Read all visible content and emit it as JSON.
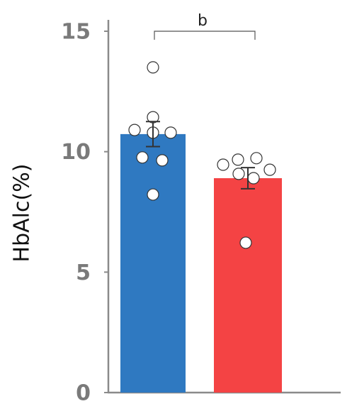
{
  "chart_data": {
    "type": "bar",
    "ylabel": "HbAlc(%)",
    "annotation": "b",
    "categories": [
      null,
      null
    ],
    "values": [
      10.73,
      8.9
    ],
    "errors": [
      0.52,
      0.44
    ],
    "colors": [
      "#2f79c1",
      "#f44344"
    ],
    "points": [
      [
        13.5,
        11.43,
        10.9,
        10.79,
        10.79,
        9.76,
        9.64,
        8.22
      ],
      [
        9.46,
        9.67,
        9.73,
        9.08,
        8.9,
        9.25,
        6.22
      ]
    ],
    "ylim": [
      0,
      15
    ],
    "yticks": [
      0,
      5,
      10,
      15
    ]
  }
}
